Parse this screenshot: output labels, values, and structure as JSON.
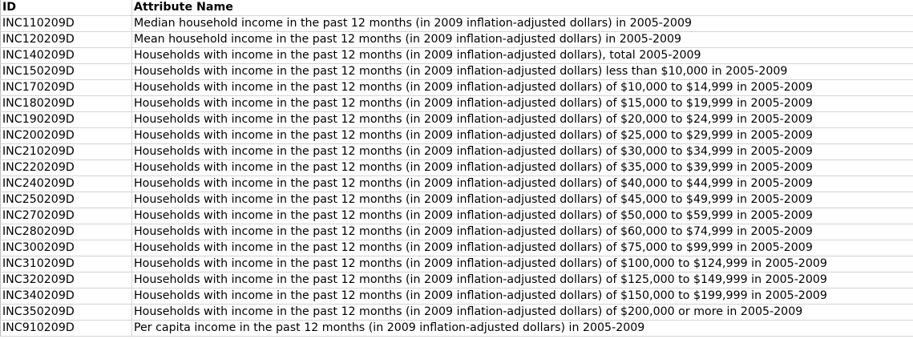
{
  "table": {
    "headers": {
      "id": "ID",
      "name": "Attribute Name"
    },
    "rows": [
      {
        "id": "INC110209D",
        "name": "Median household income in the past 12 months (in 2009 inflation-adjusted dollars) in 2005-2009"
      },
      {
        "id": "INC120209D",
        "name": "Mean household income in the past 12 months (in 2009 inflation-adjusted dollars) in 2005-2009"
      },
      {
        "id": "INC140209D",
        "name": "Households with income in the past 12 months (in 2009 inflation-adjusted dollars), total 2005-2009"
      },
      {
        "id": "INC150209D",
        "name": "Households with income in the past 12 months (in 2009 inflation-adjusted dollars) less than $10,000 in 2005-2009"
      },
      {
        "id": "INC170209D",
        "name": "Households with income in the past 12 months (in 2009 inflation-adjusted dollars) of $10,000 to $14,999 in 2005-2009"
      },
      {
        "id": "INC180209D",
        "name": "Households with income in the past 12 months (in 2009 inflation-adjusted dollars) of $15,000 to $19,999 in 2005-2009"
      },
      {
        "id": "INC190209D",
        "name": "Households with income in the past 12 months (in 2009 inflation-adjusted dollars) of $20,000 to $24,999 in 2005-2009"
      },
      {
        "id": "INC200209D",
        "name": "Households with income in the past 12 months (in 2009 inflation-adjusted dollars) of $25,000 to $29,999 in 2005-2009"
      },
      {
        "id": "INC210209D",
        "name": "Households with income in the past 12 months (in 2009 inflation-adjusted dollars) of $30,000 to $34,999 in 2005-2009"
      },
      {
        "id": "INC220209D",
        "name": "Households with income in the past 12 months (in 2009 inflation-adjusted dollars) of $35,000 to $39,999 in 2005-2009"
      },
      {
        "id": "INC240209D",
        "name": "Households with income in the past 12 months (in 2009 inflation-adjusted dollars) of $40,000 to $44,999 in 2005-2009"
      },
      {
        "id": "INC250209D",
        "name": "Households with income in the past 12 months (in 2009 inflation-adjusted dollars) of $45,000 to $49,999 in 2005-2009"
      },
      {
        "id": "INC270209D",
        "name": "Households with income in the past 12 months (in 2009 inflation-adjusted dollars) of $50,000 to $59,999 in 2005-2009"
      },
      {
        "id": "INC280209D",
        "name": "Households with income in the past 12 months (in 2009 inflation-adjusted dollars) of $60,000 to $74,999 in 2005-2009"
      },
      {
        "id": "INC300209D",
        "name": "Households with income in the past 12 months (in 2009 inflation-adjusted dollars) of $75,000 to $99,999 in 2005-2009"
      },
      {
        "id": "INC310209D",
        "name": "Households with income in the past 12 months (in 2009 inflation-adjusted dollars) of $100,000 to $124,999 in 2005-2009"
      },
      {
        "id": "INC320209D",
        "name": "Households with income in the past 12 months (in 2009 inflation-adjusted dollars) of $125,000 to $149,999 in 2005-2009"
      },
      {
        "id": "INC340209D",
        "name": "Households with income in the past 12 months (in 2009 inflation-adjusted dollars) of $150,000 to $199,999 in 2005-2009"
      },
      {
        "id": "INC350209D",
        "name": "Households with income in the past 12 months (in 2009 inflation-adjusted dollars) of $200,000 or more in 2005-2009"
      },
      {
        "id": "INC910209D",
        "name": "Per capita income in the past 12 months (in 2009 inflation-adjusted dollars) in 2005-2009"
      }
    ]
  }
}
